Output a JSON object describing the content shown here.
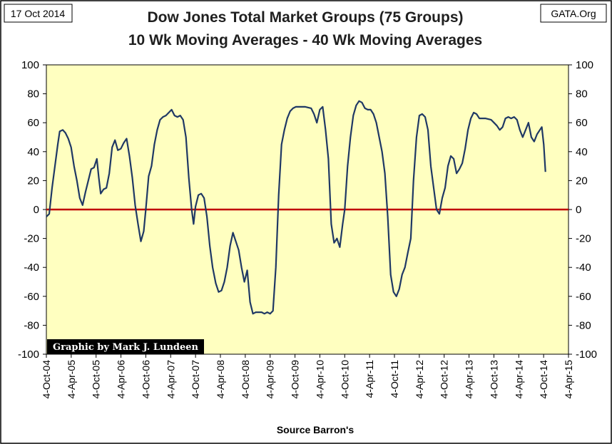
{
  "header": {
    "date_box": "17 Oct 2014",
    "source_box": "GATA.Org"
  },
  "chart_data": {
    "type": "line",
    "title": "Dow Jones Total Market Groups (75 Groups)",
    "subtitle": "10 Wk Moving Averages - 40 Wk Moving Averages",
    "xlabel": "Source Barron's",
    "ylabel": "",
    "ylim": [
      -100,
      100
    ],
    "yticks": [
      100,
      80,
      60,
      40,
      20,
      0,
      -20,
      -40,
      -60,
      -80,
      -100
    ],
    "xlim": [
      "2004-10-04",
      "2015-04-04"
    ],
    "xtick_labels": [
      "4-Oct-04",
      "4-Apr-05",
      "4-Oct-05",
      "4-Apr-06",
      "4-Oct-06",
      "4-Apr-07",
      "4-Oct-07",
      "4-Apr-08",
      "4-Oct-08",
      "4-Apr-09",
      "4-Oct-09",
      "4-Apr-10",
      "4-Oct-10",
      "4-Apr-11",
      "4-Oct-11",
      "4-Apr-12",
      "4-Oct-12",
      "4-Apr-13",
      "4-Oct-13",
      "4-Apr-14",
      "4-Oct-14",
      "4-Apr-15"
    ],
    "grid": false,
    "reference_line": {
      "y": 0,
      "color": "#c00000"
    },
    "plot_background": "#ffffc0",
    "line_color": "#1f3864",
    "series": [
      {
        "points": [
          [
            "2004-10-04",
            -5
          ],
          [
            "2004-10-25",
            -3
          ],
          [
            "2004-11-15",
            15
          ],
          [
            "2004-12-06",
            30
          ],
          [
            "2004-12-27",
            45
          ],
          [
            "2005-01-10",
            54
          ],
          [
            "2005-02-01",
            55
          ],
          [
            "2005-02-21",
            53
          ],
          [
            "2005-03-14",
            49
          ],
          [
            "2005-04-04",
            43
          ],
          [
            "2005-04-25",
            30
          ],
          [
            "2005-05-16",
            20
          ],
          [
            "2005-06-06",
            8
          ],
          [
            "2005-06-27",
            3
          ],
          [
            "2005-07-18",
            12
          ],
          [
            "2005-08-08",
            20
          ],
          [
            "2005-08-29",
            28
          ],
          [
            "2005-09-19",
            29
          ],
          [
            "2005-10-10",
            35
          ],
          [
            "2005-10-24",
            22
          ],
          [
            "2005-11-07",
            11
          ],
          [
            "2005-11-28",
            14
          ],
          [
            "2005-12-19",
            15
          ],
          [
            "2006-01-09",
            25
          ],
          [
            "2006-01-30",
            43
          ],
          [
            "2006-02-20",
            48
          ],
          [
            "2006-03-13",
            41
          ],
          [
            "2006-04-04",
            42
          ],
          [
            "2006-04-25",
            46
          ],
          [
            "2006-05-16",
            49
          ],
          [
            "2006-06-06",
            37
          ],
          [
            "2006-06-27",
            22
          ],
          [
            "2006-07-18",
            3
          ],
          [
            "2006-08-08",
            -10
          ],
          [
            "2006-08-29",
            -22
          ],
          [
            "2006-09-19",
            -15
          ],
          [
            "2006-10-04",
            0
          ],
          [
            "2006-10-25",
            23
          ],
          [
            "2006-11-15",
            30
          ],
          [
            "2006-12-06",
            45
          ],
          [
            "2006-12-27",
            55
          ],
          [
            "2007-01-17",
            62
          ],
          [
            "2007-02-07",
            64
          ],
          [
            "2007-03-01",
            65
          ],
          [
            "2007-03-22",
            67
          ],
          [
            "2007-04-12",
            69
          ],
          [
            "2007-05-03",
            65
          ],
          [
            "2007-05-24",
            64
          ],
          [
            "2007-06-14",
            65
          ],
          [
            "2007-07-05",
            62
          ],
          [
            "2007-07-26",
            50
          ],
          [
            "2007-08-16",
            22
          ],
          [
            "2007-09-06",
            0
          ],
          [
            "2007-09-20",
            -10
          ],
          [
            "2007-10-04",
            2
          ],
          [
            "2007-10-25",
            10
          ],
          [
            "2007-11-15",
            11
          ],
          [
            "2007-12-06",
            8
          ],
          [
            "2007-12-27",
            -5
          ],
          [
            "2008-01-17",
            -25
          ],
          [
            "2008-02-07",
            -40
          ],
          [
            "2008-03-01",
            -51
          ],
          [
            "2008-03-22",
            -57
          ],
          [
            "2008-04-12",
            -56
          ],
          [
            "2008-05-03",
            -50
          ],
          [
            "2008-05-24",
            -40
          ],
          [
            "2008-06-14",
            -25
          ],
          [
            "2008-07-05",
            -16
          ],
          [
            "2008-07-26",
            -22
          ],
          [
            "2008-08-16",
            -28
          ],
          [
            "2008-09-06",
            -40
          ],
          [
            "2008-09-27",
            -50
          ],
          [
            "2008-10-18",
            -42
          ],
          [
            "2008-11-08",
            -64
          ],
          [
            "2008-11-29",
            -72
          ],
          [
            "2008-12-20",
            -71
          ],
          [
            "2009-01-10",
            -71
          ],
          [
            "2009-02-01",
            -71
          ],
          [
            "2009-02-21",
            -72
          ],
          [
            "2009-03-14",
            -71
          ],
          [
            "2009-04-04",
            -72
          ],
          [
            "2009-04-25",
            -70
          ],
          [
            "2009-05-16",
            -40
          ],
          [
            "2009-06-06",
            10
          ],
          [
            "2009-06-27",
            45
          ],
          [
            "2009-07-18",
            55
          ],
          [
            "2009-08-08",
            63
          ],
          [
            "2009-08-29",
            68
          ],
          [
            "2009-09-19",
            70
          ],
          [
            "2009-10-10",
            71
          ],
          [
            "2009-11-07",
            71
          ],
          [
            "2009-12-19",
            71
          ],
          [
            "2010-01-30",
            70
          ],
          [
            "2010-02-20",
            66
          ],
          [
            "2010-03-13",
            60
          ],
          [
            "2010-04-04",
            69
          ],
          [
            "2010-04-25",
            71
          ],
          [
            "2010-05-16",
            55
          ],
          [
            "2010-06-06",
            35
          ],
          [
            "2010-06-27",
            -10
          ],
          [
            "2010-07-18",
            -23
          ],
          [
            "2010-08-08",
            -20
          ],
          [
            "2010-08-29",
            -26
          ],
          [
            "2010-09-19",
            -10
          ],
          [
            "2010-10-04",
            0
          ],
          [
            "2010-10-25",
            30
          ],
          [
            "2010-11-15",
            50
          ],
          [
            "2010-12-06",
            65
          ],
          [
            "2010-12-27",
            72
          ],
          [
            "2011-01-17",
            75
          ],
          [
            "2011-02-07",
            74
          ],
          [
            "2011-03-01",
            70
          ],
          [
            "2011-03-22",
            69
          ],
          [
            "2011-04-12",
            69
          ],
          [
            "2011-05-03",
            66
          ],
          [
            "2011-05-24",
            60
          ],
          [
            "2011-06-14",
            50
          ],
          [
            "2011-07-05",
            40
          ],
          [
            "2011-07-26",
            25
          ],
          [
            "2011-08-16",
            -5
          ],
          [
            "2011-09-06",
            -45
          ],
          [
            "2011-09-27",
            -57
          ],
          [
            "2011-10-18",
            -60
          ],
          [
            "2011-11-08",
            -55
          ],
          [
            "2011-11-29",
            -45
          ],
          [
            "2011-12-20",
            -40
          ],
          [
            "2012-01-10",
            -30
          ],
          [
            "2012-02-01",
            -20
          ],
          [
            "2012-02-21",
            20
          ],
          [
            "2012-03-14",
            50
          ],
          [
            "2012-04-04",
            65
          ],
          [
            "2012-04-25",
            66
          ],
          [
            "2012-05-16",
            64
          ],
          [
            "2012-06-06",
            55
          ],
          [
            "2012-06-27",
            30
          ],
          [
            "2012-07-18",
            15
          ],
          [
            "2012-08-08",
            0
          ],
          [
            "2012-08-29",
            -3
          ],
          [
            "2012-09-19",
            8
          ],
          [
            "2012-10-10",
            15
          ],
          [
            "2012-10-31",
            30
          ],
          [
            "2012-11-21",
            37
          ],
          [
            "2012-12-12",
            35
          ],
          [
            "2013-01-02",
            25
          ],
          [
            "2013-01-23",
            28
          ],
          [
            "2013-02-13",
            32
          ],
          [
            "2013-03-06",
            42
          ],
          [
            "2013-03-27",
            55
          ],
          [
            "2013-04-17",
            63
          ],
          [
            "2013-05-08",
            67
          ],
          [
            "2013-05-29",
            66
          ],
          [
            "2013-06-19",
            63
          ],
          [
            "2013-08-01",
            63
          ],
          [
            "2013-09-13",
            62
          ],
          [
            "2013-10-04",
            60
          ],
          [
            "2013-10-25",
            58
          ],
          [
            "2013-11-15",
            55
          ],
          [
            "2013-12-06",
            57
          ],
          [
            "2013-12-27",
            63
          ],
          [
            "2014-01-17",
            64
          ],
          [
            "2014-02-07",
            63
          ],
          [
            "2014-03-01",
            64
          ],
          [
            "2014-03-22",
            62
          ],
          [
            "2014-04-12",
            55
          ],
          [
            "2014-05-03",
            50
          ],
          [
            "2014-05-24",
            55
          ],
          [
            "2014-06-14",
            60
          ],
          [
            "2014-07-05",
            50
          ],
          [
            "2014-07-26",
            47
          ],
          [
            "2014-08-16",
            52
          ],
          [
            "2014-09-06",
            55
          ],
          [
            "2014-09-20",
            57
          ],
          [
            "2014-10-04",
            45
          ],
          [
            "2014-10-17",
            26
          ]
        ]
      }
    ]
  },
  "credit": "Graphic by Mark J. Lundeen"
}
